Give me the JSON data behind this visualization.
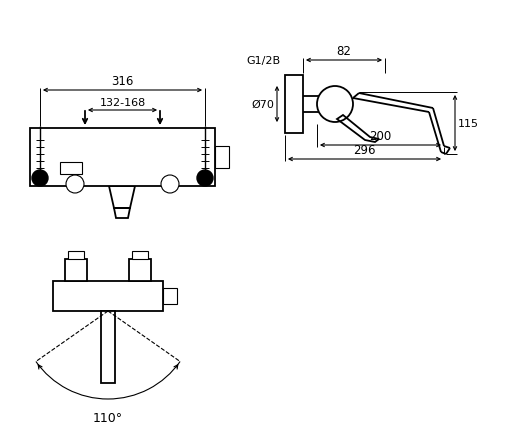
{
  "bg_color": "#ffffff",
  "line_color": "#000000",
  "fig_width": 5.2,
  "fig_height": 4.35,
  "dpi": 100,
  "labels": {
    "dim_316": "316",
    "dim_132_168": "132-168",
    "dim_82": "82",
    "dim_115": "115",
    "dim_200": "200",
    "dim_296": "296",
    "dim_phi70": "Ø70",
    "dim_G12B": "G1/2B",
    "dim_110": "110°"
  }
}
